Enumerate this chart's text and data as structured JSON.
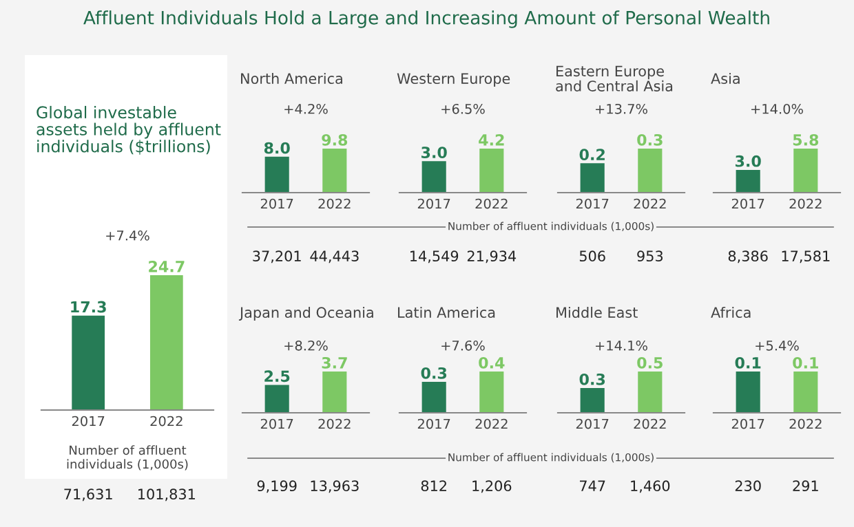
{
  "chart_data": [
    {
      "type": "bar",
      "title": "Affluent Individuals Hold a Large and Increasing Amount of Personal Wealth",
      "subtitle": "Global investable\nassets held by affluent\nindividuals ($trillions)",
      "categories": [
        "2017",
        "2022"
      ],
      "values": [
        17.3,
        24.7
      ],
      "colors": [
        "#267c56",
        "#7dc864"
      ],
      "data_labels": true,
      "tick_labels": "x",
      "annotations": [
        "+7.4%",
        "71,631",
        "101,831",
        "Number of affluent\nindividuals (1,000s)"
      ]
    },
    {
      "type": "bar",
      "title": "North America",
      "categories": [
        "2017",
        "2022"
      ],
      "values": [
        8.0,
        9.8
      ],
      "value_labels": [
        "8.0",
        "9.8"
      ],
      "colors": [
        "#267c56",
        "#7dc864"
      ],
      "tick_labels": "x",
      "annotations": [
        "+4.2%",
        "37,201",
        "44,443",
        "Number of affluent individuals (1,000s)"
      ]
    },
    {
      "type": "bar",
      "title": "Western Europe",
      "categories": [
        "2017",
        "2022"
      ],
      "values": [
        3.0,
        4.2
      ],
      "value_labels": [
        "3.0",
        "4.2"
      ],
      "colors": [
        "#267c56",
        "#7dc864"
      ],
      "tick_labels": "x",
      "annotations": [
        "+6.5%",
        "14,549",
        "21,934"
      ]
    },
    {
      "type": "bar",
      "title": "Eastern Europe\nand Central Asia",
      "categories": [
        "2017",
        "2022"
      ],
      "values": [
        0.2,
        0.3
      ],
      "colors": [
        "#267c56",
        "#7dc864"
      ],
      "data_labels": true,
      "tick_labels": "x",
      "annotations": [
        "+13.7%",
        "506",
        "953"
      ]
    },
    {
      "type": "bar",
      "title": "Asia",
      "categories": [
        "2017",
        "2022"
      ],
      "values": [
        3.0,
        5.8
      ],
      "value_labels": [
        "3.0",
        "5.8"
      ],
      "colors": [
        "#267c56",
        "#7dc864"
      ],
      "tick_labels": "x",
      "annotations": [
        "+14.0%",
        "8,386",
        "17,581"
      ]
    },
    {
      "type": "bar",
      "title": "Japan and Oceania",
      "categories": [
        "2017",
        "2022"
      ],
      "values": [
        2.5,
        3.7
      ],
      "colors": [
        "#267c56",
        "#7dc864"
      ],
      "data_labels": true,
      "tick_labels": "x",
      "annotations": [
        "+8.2%",
        "9,199",
        "13,963",
        "Number of affluent individuals (1,000s)"
      ]
    },
    {
      "type": "bar",
      "title": "Latin America",
      "categories": [
        "2017",
        "2022"
      ],
      "values": [
        0.3,
        0.4
      ],
      "colors": [
        "#267c56",
        "#7dc864"
      ],
      "data_labels": true,
      "tick_labels": "x",
      "annotations": [
        "+7.6%",
        "812",
        "1,206"
      ]
    },
    {
      "type": "bar",
      "title": "Middle East",
      "categories": [
        "2017",
        "2022"
      ],
      "values": [
        0.3,
        0.5
      ],
      "colors": [
        "#267c56",
        "#7dc864"
      ],
      "data_labels": true,
      "tick_labels": "x",
      "annotations": [
        "+14.1%",
        "747",
        "1,460"
      ]
    },
    {
      "type": "bar",
      "title": "Africa",
      "categories": [
        "2017",
        "2022"
      ],
      "values": [
        0.1,
        0.1
      ],
      "colors": [
        "#267c56",
        "#7dc864"
      ],
      "data_labels": true,
      "tick_labels": "x",
      "annotations": [
        "+5.4%",
        "230",
        "291"
      ]
    }
  ]
}
